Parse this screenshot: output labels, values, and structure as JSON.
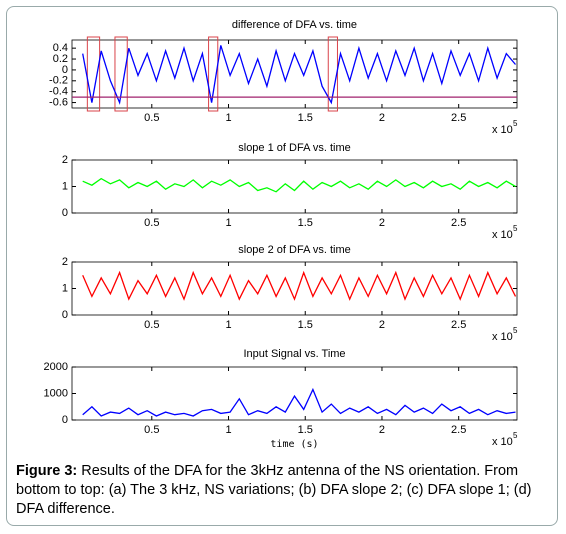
{
  "chart_data": [
    {
      "type": "line",
      "title": "difference of DFA vs. time",
      "x": [
        0.05,
        0.11,
        0.17,
        0.23,
        0.29,
        0.35,
        0.41,
        0.47,
        0.53,
        0.59,
        0.65,
        0.71,
        0.77,
        0.83,
        0.89,
        0.95,
        1.01,
        1.07,
        1.13,
        1.19,
        1.25,
        1.31,
        1.37,
        1.43,
        1.49,
        1.55,
        1.61,
        1.67,
        1.73,
        1.79,
        1.85,
        1.91,
        1.97,
        2.03,
        2.09,
        2.15,
        2.21,
        2.27,
        2.33,
        2.39,
        2.45,
        2.51,
        2.57,
        2.63,
        2.69,
        2.75,
        2.81,
        2.87
      ],
      "series": [
        {
          "color": "#0000ff",
          "values": [
            0.3,
            -0.6,
            0.35,
            -0.2,
            -0.6,
            0.4,
            -0.1,
            0.3,
            -0.2,
            0.35,
            -0.15,
            0.4,
            -0.2,
            0.3,
            -0.6,
            0.45,
            -0.1,
            0.3,
            -0.25,
            0.2,
            -0.3,
            0.35,
            -0.2,
            0.3,
            -0.1,
            0.35,
            -0.3,
            -0.6,
            0.3,
            -0.2,
            0.4,
            -0.15,
            0.3,
            -0.2,
            0.35,
            -0.1,
            0.4,
            -0.2,
            0.3,
            -0.25,
            0.35,
            -0.1,
            0.3,
            -0.2,
            0.4,
            -0.15,
            0.3,
            0.1
          ]
        }
      ],
      "hline": {
        "value": -0.5,
        "color": "#a0226e"
      },
      "highlights": {
        "color": "#d9434a",
        "ranges": [
          [
            0.08,
            0.16
          ],
          [
            0.26,
            0.34
          ],
          [
            0.87,
            0.93
          ],
          [
            1.65,
            1.71
          ]
        ]
      },
      "xlim": [
        -0.02,
        2.88
      ],
      "xticks": [
        0.5,
        1,
        1.5,
        2,
        2.5
      ],
      "ylim": [
        -0.7,
        0.55
      ],
      "yticks": [
        0.4,
        0.2,
        0,
        -0.2,
        -0.4,
        -0.6
      ],
      "x_scale_label": "x 10",
      "x_scale_exponent": "5"
    },
    {
      "type": "line",
      "title": "slope 1 of DFA vs. time",
      "x": [
        0.05,
        0.11,
        0.17,
        0.23,
        0.29,
        0.35,
        0.41,
        0.47,
        0.53,
        0.59,
        0.65,
        0.71,
        0.77,
        0.83,
        0.89,
        0.95,
        1.01,
        1.07,
        1.13,
        1.19,
        1.25,
        1.31,
        1.37,
        1.43,
        1.49,
        1.55,
        1.61,
        1.67,
        1.73,
        1.79,
        1.85,
        1.91,
        1.97,
        2.03,
        2.09,
        2.15,
        2.21,
        2.27,
        2.33,
        2.39,
        2.45,
        2.51,
        2.57,
        2.63,
        2.69,
        2.75,
        2.81,
        2.87
      ],
      "series": [
        {
          "color": "#00ff00",
          "values": [
            1.2,
            1.05,
            1.3,
            1.1,
            1.25,
            0.95,
            1.15,
            1.0,
            1.2,
            0.9,
            1.1,
            1.0,
            1.25,
            0.95,
            1.2,
            1.05,
            1.25,
            1.0,
            1.15,
            0.85,
            0.95,
            0.8,
            1.1,
            0.85,
            1.2,
            0.9,
            1.15,
            1.0,
            1.2,
            0.95,
            1.1,
            0.9,
            1.2,
            1.0,
            1.25,
            1.0,
            1.15,
            0.95,
            1.2,
            1.0,
            1.1,
            0.9,
            1.2,
            1.0,
            1.15,
            0.95,
            1.2,
            1.0
          ]
        }
      ],
      "xlim": [
        -0.02,
        2.88
      ],
      "xticks": [
        0.5,
        1,
        1.5,
        2,
        2.5
      ],
      "ylim": [
        0,
        2
      ],
      "yticks": [
        0,
        1,
        2
      ],
      "x_scale_label": "x 10",
      "x_scale_exponent": "5"
    },
    {
      "type": "line",
      "title": "slope 2 of DFA vs. time",
      "x": [
        0.05,
        0.11,
        0.17,
        0.23,
        0.29,
        0.35,
        0.41,
        0.47,
        0.53,
        0.59,
        0.65,
        0.71,
        0.77,
        0.83,
        0.89,
        0.95,
        1.01,
        1.07,
        1.13,
        1.19,
        1.25,
        1.31,
        1.37,
        1.43,
        1.49,
        1.55,
        1.61,
        1.67,
        1.73,
        1.79,
        1.85,
        1.91,
        1.97,
        2.03,
        2.09,
        2.15,
        2.21,
        2.27,
        2.33,
        2.39,
        2.45,
        2.51,
        2.57,
        2.63,
        2.69,
        2.75,
        2.81,
        2.87
      ],
      "series": [
        {
          "color": "#ff0000",
          "values": [
            1.5,
            0.7,
            1.4,
            0.8,
            1.6,
            0.6,
            1.3,
            0.8,
            1.5,
            0.7,
            1.4,
            0.6,
            1.6,
            0.8,
            1.4,
            0.7,
            1.5,
            0.6,
            1.3,
            0.8,
            1.5,
            0.7,
            1.4,
            0.6,
            1.6,
            0.7,
            1.4,
            0.8,
            1.5,
            0.6,
            1.4,
            0.7,
            1.5,
            0.8,
            1.6,
            0.6,
            1.4,
            0.7,
            1.5,
            0.8,
            1.4,
            0.6,
            1.5,
            0.7,
            1.6,
            0.8,
            1.4,
            0.7
          ]
        }
      ],
      "xlim": [
        -0.02,
        2.88
      ],
      "xticks": [
        0.5,
        1,
        1.5,
        2,
        2.5
      ],
      "ylim": [
        0,
        2
      ],
      "yticks": [
        0,
        1,
        2
      ],
      "x_scale_label": "x 10",
      "x_scale_exponent": "5"
    },
    {
      "type": "line",
      "title": "Input Signal vs. Time",
      "xlabel": "time (s)",
      "x": [
        0.05,
        0.11,
        0.17,
        0.23,
        0.29,
        0.35,
        0.41,
        0.47,
        0.53,
        0.59,
        0.65,
        0.71,
        0.77,
        0.83,
        0.89,
        0.95,
        1.01,
        1.07,
        1.13,
        1.19,
        1.25,
        1.31,
        1.37,
        1.43,
        1.49,
        1.55,
        1.61,
        1.67,
        1.73,
        1.79,
        1.85,
        1.91,
        1.97,
        2.03,
        2.09,
        2.15,
        2.21,
        2.27,
        2.33,
        2.39,
        2.45,
        2.51,
        2.57,
        2.63,
        2.69,
        2.75,
        2.81,
        2.87
      ],
      "series": [
        {
          "color": "#0000ff",
          "values": [
            200,
            500,
            150,
            300,
            250,
            450,
            200,
            350,
            150,
            300,
            200,
            250,
            150,
            350,
            400,
            250,
            300,
            800,
            200,
            350,
            250,
            500,
            300,
            900,
            400,
            1150,
            300,
            600,
            250,
            450,
            300,
            500,
            250,
            400,
            200,
            550,
            300,
            450,
            250,
            600,
            350,
            500,
            250,
            400,
            200,
            350,
            250,
            300
          ]
        }
      ],
      "xlim": [
        -0.02,
        2.88
      ],
      "xticks": [
        0.5,
        1,
        1.5,
        2,
        2.5
      ],
      "ylim": [
        0,
        2000
      ],
      "yticks": [
        0,
        1000,
        2000
      ],
      "x_scale_label": "x 10",
      "x_scale_exponent": "5"
    }
  ],
  "caption": {
    "label": "Figure 3:",
    "text": "Results of the DFA for the 3kHz antenna of the NS orientation. From bottom to top: (a) The 3 kHz, NS variations; (b) DFA slope 2; (c) DFA slope 1; (d) DFA difference."
  }
}
